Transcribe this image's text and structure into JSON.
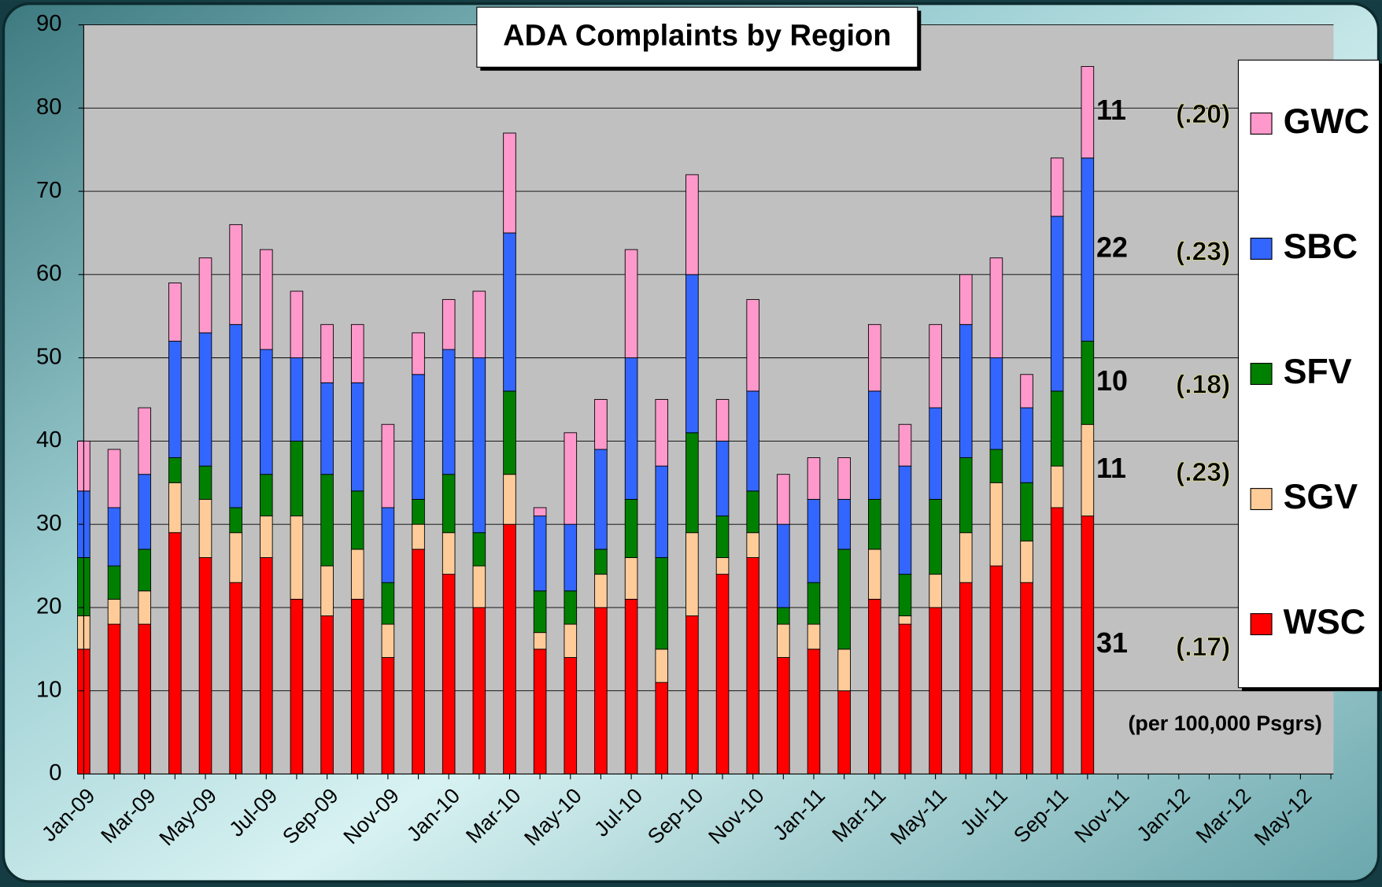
{
  "chart_data": {
    "type": "stacked-bar",
    "title": "ADA Complaints by Region",
    "categories": [
      "Jan-09",
      null,
      "Mar-09",
      null,
      "May-09",
      null,
      "Jul-09",
      null,
      "Sep-09",
      null,
      "Nov-09",
      null,
      "Jan-10",
      null,
      "Mar-10",
      null,
      "May-10",
      null,
      "Jul-10",
      null,
      "Sep-10",
      null,
      "Nov-10",
      null,
      "Jan-11",
      null,
      "Mar-11",
      null,
      "May-11",
      null,
      "Jul-11",
      null,
      "Sep-11",
      null,
      "Nov-11",
      null,
      "Jan-12",
      null,
      "Mar-12",
      null,
      "May-12",
      null
    ],
    "series": [
      {
        "name": "WSC",
        "color": "#ff0000",
        "rate": "(.17)",
        "values": [
          15,
          18,
          18,
          29,
          26,
          23,
          26,
          21,
          19,
          21,
          14,
          27,
          24,
          20,
          30,
          15,
          14,
          20,
          21,
          11,
          19,
          24,
          26,
          14,
          15,
          10,
          21,
          18,
          20,
          23,
          25,
          23,
          32,
          31,
          null,
          null,
          null,
          null,
          null,
          null,
          null,
          null
        ]
      },
      {
        "name": "SGV",
        "color": "#ffcc99",
        "rate": "(.23)",
        "values": [
          4,
          3,
          4,
          6,
          7,
          6,
          5,
          10,
          6,
          6,
          4,
          3,
          5,
          5,
          6,
          2,
          4,
          4,
          5,
          4,
          10,
          2,
          3,
          4,
          3,
          5,
          6,
          1,
          4,
          6,
          10,
          5,
          5,
          11,
          null,
          null,
          null,
          null,
          null,
          null,
          null,
          null
        ]
      },
      {
        "name": "SFV",
        "color": "#008000",
        "rate": "(.18)",
        "values": [
          7,
          4,
          5,
          3,
          4,
          3,
          5,
          9,
          11,
          7,
          5,
          3,
          7,
          4,
          10,
          5,
          4,
          3,
          7,
          11,
          12,
          5,
          5,
          2,
          5,
          12,
          6,
          5,
          9,
          9,
          4,
          7,
          9,
          10,
          null,
          null,
          null,
          null,
          null,
          null,
          null,
          null
        ]
      },
      {
        "name": "SBC",
        "color": "#3366ff",
        "rate": "(.23)",
        "values": [
          8,
          7,
          9,
          14,
          16,
          22,
          15,
          10,
          11,
          13,
          9,
          15,
          15,
          21,
          19,
          9,
          8,
          12,
          17,
          11,
          19,
          9,
          12,
          10,
          10,
          6,
          13,
          13,
          11,
          16,
          11,
          9,
          21,
          22,
          null,
          null,
          null,
          null,
          null,
          null,
          null,
          null
        ]
      },
      {
        "name": "GWC",
        "color": "#ff99cc",
        "rate": "(.20)",
        "values": [
          6,
          7,
          8,
          7,
          9,
          12,
          12,
          8,
          7,
          7,
          10,
          5,
          6,
          8,
          12,
          1,
          11,
          6,
          13,
          8,
          12,
          5,
          11,
          6,
          5,
          5,
          8,
          5,
          10,
          6,
          12,
          4,
          7,
          11,
          null,
          null,
          null,
          null,
          null,
          null,
          null,
          null
        ]
      }
    ],
    "note": "(per 100,000 Psgrs)",
    "ylim": [
      0,
      90
    ],
    "yticks": [
      0,
      10,
      20,
      30,
      40,
      50,
      60,
      70,
      80,
      90
    ],
    "grid": true
  }
}
